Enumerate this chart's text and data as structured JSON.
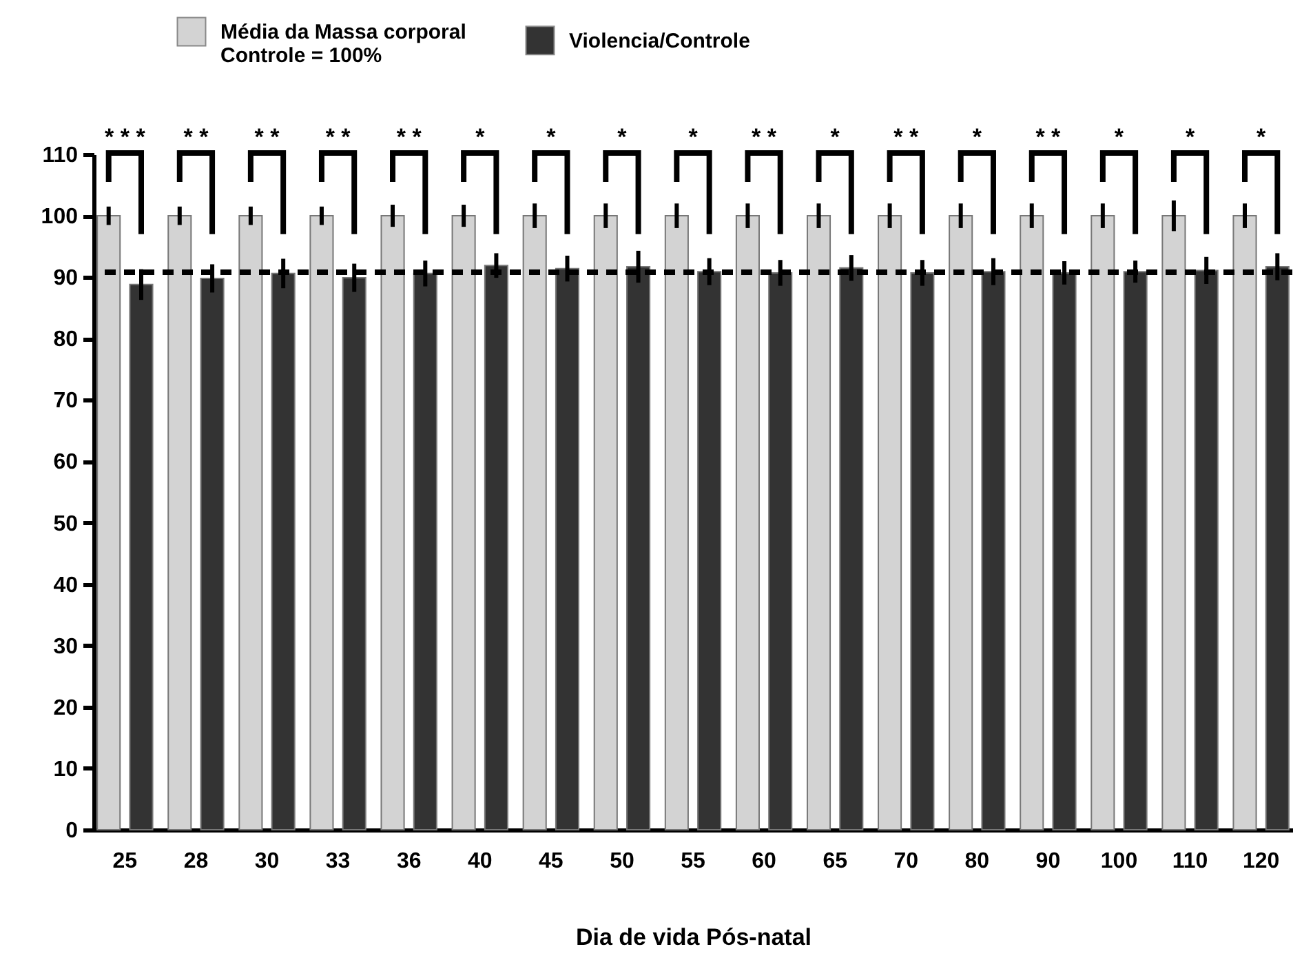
{
  "chart_data": {
    "type": "bar",
    "xlabel": "Dia de vida Pós-natal",
    "categories": [
      "25",
      "28",
      "30",
      "33",
      "36",
      "40",
      "45",
      "50",
      "55",
      "60",
      "65",
      "70",
      "80",
      "90",
      "100",
      "110",
      "120"
    ],
    "series": [
      {
        "name": "Média da Massa corporal Controle = 100%",
        "color": "#d3d3d3",
        "values": [
          100,
          100,
          100,
          100,
          100,
          100,
          100,
          100,
          100,
          100,
          100,
          100,
          100,
          100,
          100,
          100,
          100
        ],
        "errors": [
          1.5,
          1.5,
          1.5,
          1.5,
          1.8,
          1.8,
          2,
          2,
          2,
          2,
          2,
          2,
          2,
          2,
          2,
          2.5,
          2
        ]
      },
      {
        "name": "Violencia/Controle",
        "color": "#333333",
        "values": [
          88.8,
          89.8,
          90.6,
          89.9,
          90.6,
          91.9,
          91.4,
          91.7,
          90.9,
          90.7,
          91.5,
          90.7,
          90.9,
          90.7,
          90.9,
          91.1,
          91.7
        ],
        "errors": [
          2.5,
          2.3,
          2.4,
          2.3,
          2.1,
          2,
          2.1,
          2.6,
          2.2,
          2.1,
          2.1,
          2.1,
          2.2,
          1.9,
          1.8,
          2.2,
          2.2
        ]
      }
    ],
    "ylim": [
      0,
      110
    ],
    "yticks": [
      0,
      10,
      20,
      30,
      40,
      50,
      60,
      70,
      80,
      90,
      100,
      110
    ],
    "grid": false,
    "legend": "top",
    "ref_lines": [
      {
        "axis": "y",
        "value": 90.8,
        "color": "#000000",
        "line_style": "dashed"
      }
    ],
    "annotations": [
      "* * *",
      "* *",
      "* *",
      "* *",
      "* *",
      "*",
      "*",
      "*",
      "*",
      "* *",
      "*",
      "* *",
      "*",
      "* *",
      "*",
      "*",
      "*"
    ]
  }
}
